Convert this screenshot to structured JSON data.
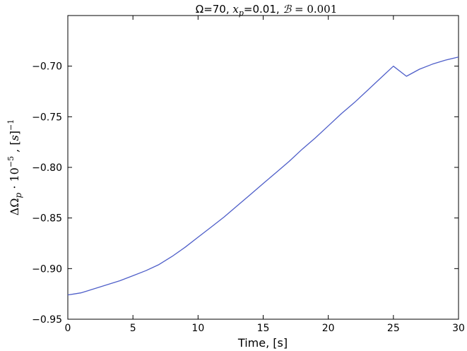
{
  "chart_data": {
    "type": "line",
    "title": "Ω=70, x_p=0.01, B=0.001",
    "title_parts": {
      "omega": "Ω=70, ",
      "xp_symbol": "x",
      "xp_sub": "p",
      "xp_value": "=0.01, ",
      "b_symbol": "ℬ",
      "b_value": " = 0.001"
    },
    "xlabel": "Time, [s]",
    "ylabel": "ΔΩ_p · 10^-5 , [s]^-1",
    "ylabel_parts": {
      "main": "ΔΩ",
      "sub": "p",
      "mult": " · 10",
      "exp": "−5",
      "sep": " , [",
      "unit": "s",
      "close": "]",
      "unit_exp": "−1"
    },
    "xlim": [
      0,
      30
    ],
    "ylim": [
      -0.95,
      -0.65
    ],
    "xticks": [
      0,
      5,
      10,
      15,
      20,
      25,
      30
    ],
    "xtick_labels": [
      "0",
      "5",
      "10",
      "15",
      "20",
      "25",
      "30"
    ],
    "yticks": [
      -0.95,
      -0.9,
      -0.85,
      -0.8,
      -0.75,
      -0.7
    ],
    "ytick_labels": [
      "−0.95",
      "−0.90",
      "−0.85",
      "−0.80",
      "−0.75",
      "−0.70"
    ],
    "grid": false,
    "line_color": "#4f5fc9",
    "series": [
      {
        "x": [
          0,
          0.5,
          1,
          2,
          3,
          4,
          5,
          6,
          7,
          8,
          9,
          10,
          11,
          12,
          13,
          14,
          15,
          16,
          17,
          18,
          19,
          20,
          21,
          22,
          23,
          24,
          25,
          26,
          27,
          28,
          29,
          30
        ],
        "values": [
          -0.926,
          -0.925,
          -0.924,
          -0.92,
          -0.916,
          -0.912,
          -0.907,
          -0.902,
          -0.896,
          -0.888,
          -0.879,
          -0.869,
          -0.859,
          -0.849,
          -0.838,
          -0.827,
          -0.816,
          -0.805,
          -0.794,
          -0.782,
          -0.771,
          -0.759,
          -0.747,
          -0.736,
          -0.724,
          -0.712,
          -0.7,
          -0.71,
          -0.703,
          -0.698,
          -0.694,
          -0.691
        ]
      }
    ]
  }
}
